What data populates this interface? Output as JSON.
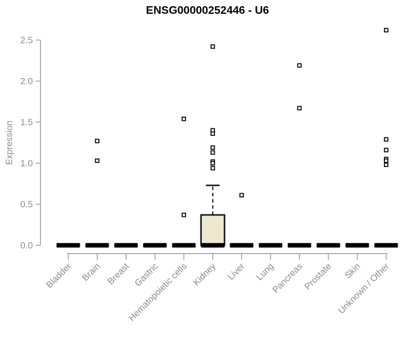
{
  "chart_data": {
    "type": "boxplot",
    "title": "ENSG00000252446 - U6",
    "ylabel": "Expression",
    "xlabel": "",
    "yticks": [
      "0.0",
      "0.5",
      "1.0",
      "1.5",
      "2.0",
      "2.5"
    ],
    "ylim": [
      0,
      2.65
    ],
    "grid": false,
    "legend": "none",
    "categories": [
      "Bladder",
      "Brain",
      "Breast",
      "Gastric",
      "Hematopoietic cells",
      "Kidney",
      "Liver",
      "Lung",
      "Pancreas",
      "Prostate",
      "Skin",
      "Unknown / Other"
    ],
    "series": [
      {
        "category": "Bladder",
        "q1": 0,
        "median": 0,
        "q3": 0,
        "whisker_low": 0,
        "whisker_high": 0,
        "outliers": []
      },
      {
        "category": "Brain",
        "q1": 0,
        "median": 0,
        "q3": 0,
        "whisker_low": 0,
        "whisker_high": 0,
        "outliers": [
          1.27,
          1.03
        ]
      },
      {
        "category": "Breast",
        "q1": 0,
        "median": 0,
        "q3": 0,
        "whisker_low": 0,
        "whisker_high": 0,
        "outliers": []
      },
      {
        "category": "Gastric",
        "q1": 0,
        "median": 0,
        "q3": 0,
        "whisker_low": 0,
        "whisker_high": 0,
        "outliers": []
      },
      {
        "category": "Hematopoietic cells",
        "q1": 0,
        "median": 0,
        "q3": 0,
        "whisker_low": 0,
        "whisker_high": 0,
        "outliers": [
          1.54,
          0.37
        ]
      },
      {
        "category": "Kidney",
        "q1": 0,
        "median": 0,
        "q3": 0.37,
        "whisker_low": 0,
        "whisker_high": 0.73,
        "outliers": [
          2.42,
          1.4,
          1.36,
          1.19,
          1.13,
          1.02,
          1.0,
          0.94
        ]
      },
      {
        "category": "Liver",
        "q1": 0,
        "median": 0,
        "q3": 0,
        "whisker_low": 0,
        "whisker_high": 0,
        "outliers": [
          0.61
        ]
      },
      {
        "category": "Lung",
        "q1": 0,
        "median": 0,
        "q3": 0,
        "whisker_low": 0,
        "whisker_high": 0,
        "outliers": []
      },
      {
        "category": "Pancreas",
        "q1": 0,
        "median": 0,
        "q3": 0,
        "whisker_low": 0,
        "whisker_high": 0,
        "outliers": [
          2.19,
          1.67
        ]
      },
      {
        "category": "Prostate",
        "q1": 0,
        "median": 0,
        "q3": 0,
        "whisker_low": 0,
        "whisker_high": 0,
        "outliers": []
      },
      {
        "category": "Skin",
        "q1": 0,
        "median": 0,
        "q3": 0,
        "whisker_low": 0,
        "whisker_high": 0,
        "outliers": []
      },
      {
        "category": "Unknown / Other",
        "q1": 0,
        "median": 0,
        "q3": 0,
        "whisker_low": 0,
        "whisker_high": 0,
        "outliers": [
          2.62,
          1.29,
          1.16,
          1.05,
          1.03,
          0.98
        ]
      }
    ],
    "colors": {
      "box_fill": "#EDE8CF",
      "box_stroke": "#000000",
      "median_bar": "#000000",
      "outlier_stroke": "#000000",
      "outlier_fill": "#ffffff",
      "axis_line": "#9a9a9a",
      "axis_text": "#8b8b8b",
      "title_text": "#000000",
      "background": "#ffffff"
    }
  }
}
